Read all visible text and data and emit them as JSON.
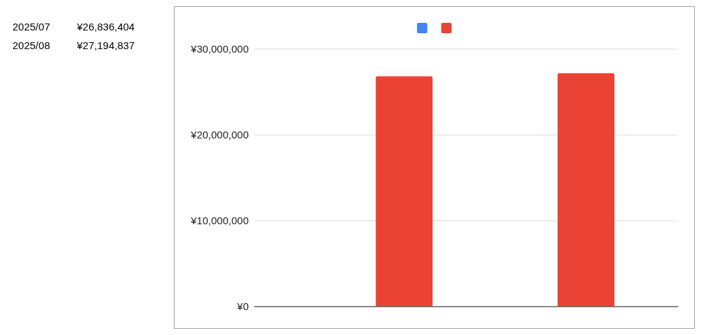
{
  "chart_data": {
    "type": "bar",
    "categories": [
      null,
      null
    ],
    "series": [
      {
        "color": "#4285f4",
        "values": [
          null,
          null
        ]
      },
      {
        "color": "#ea4335",
        "values": [
          26836404,
          27194837
        ]
      }
    ],
    "ylim": [
      0,
      30000000
    ],
    "yticks": [
      {
        "value": 0,
        "label": "¥0"
      },
      {
        "value": 10000000,
        "label": "¥10,000,000"
      },
      {
        "value": 20000000,
        "label": "¥20,000,000"
      },
      {
        "value": 30000000,
        "label": "¥30,000,000"
      }
    ],
    "grid": "y",
    "tick_labels": "y",
    "annotations": [
      "2025/07",
      "¥26,836,404",
      "2025/08",
      "¥27,194,837"
    ]
  }
}
